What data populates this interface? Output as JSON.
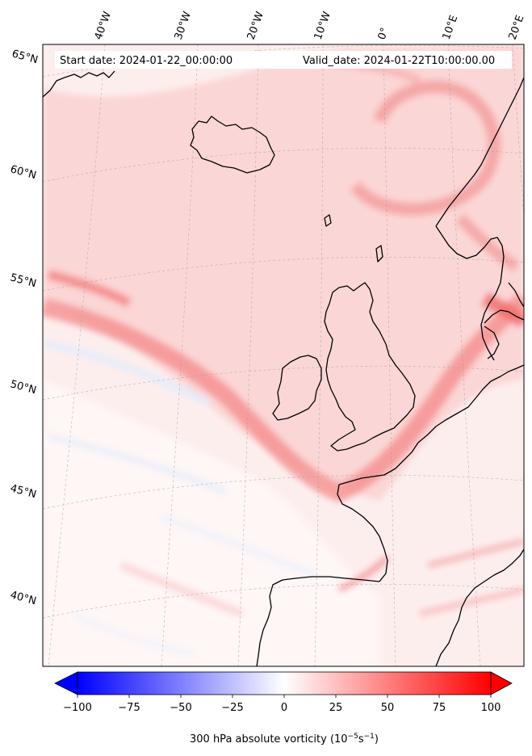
{
  "map": {
    "start_label": "Start date: 2024-01-22_00:00:00",
    "valid_label": "Valid_date: 2024-01-22T10:00:00.00",
    "lon_labels": [
      "40°W",
      "30°W",
      "20°W",
      "10°W",
      "0°",
      "10°E",
      "20°E"
    ],
    "lat_labels": [
      "65°N",
      "60°N",
      "55°N",
      "50°N",
      "45°N",
      "40°N"
    ],
    "field": "300 hPa absolute vorticity",
    "colors": {
      "max": "#ff0000",
      "min": "#0000ff",
      "mid": "#ffffff",
      "coast": "#000000"
    }
  },
  "colorbar": {
    "title_main": "300 hPa absolute vorticity (10",
    "title_exp1": "−5",
    "title_mid": "s",
    "title_exp2": "−1",
    "title_end": ")",
    "min": -100,
    "max": 100,
    "ticks": [
      "−100",
      "−75",
      "−50",
      "−25",
      "0",
      "25",
      "50",
      "75",
      "100"
    ],
    "extend": "both"
  }
}
